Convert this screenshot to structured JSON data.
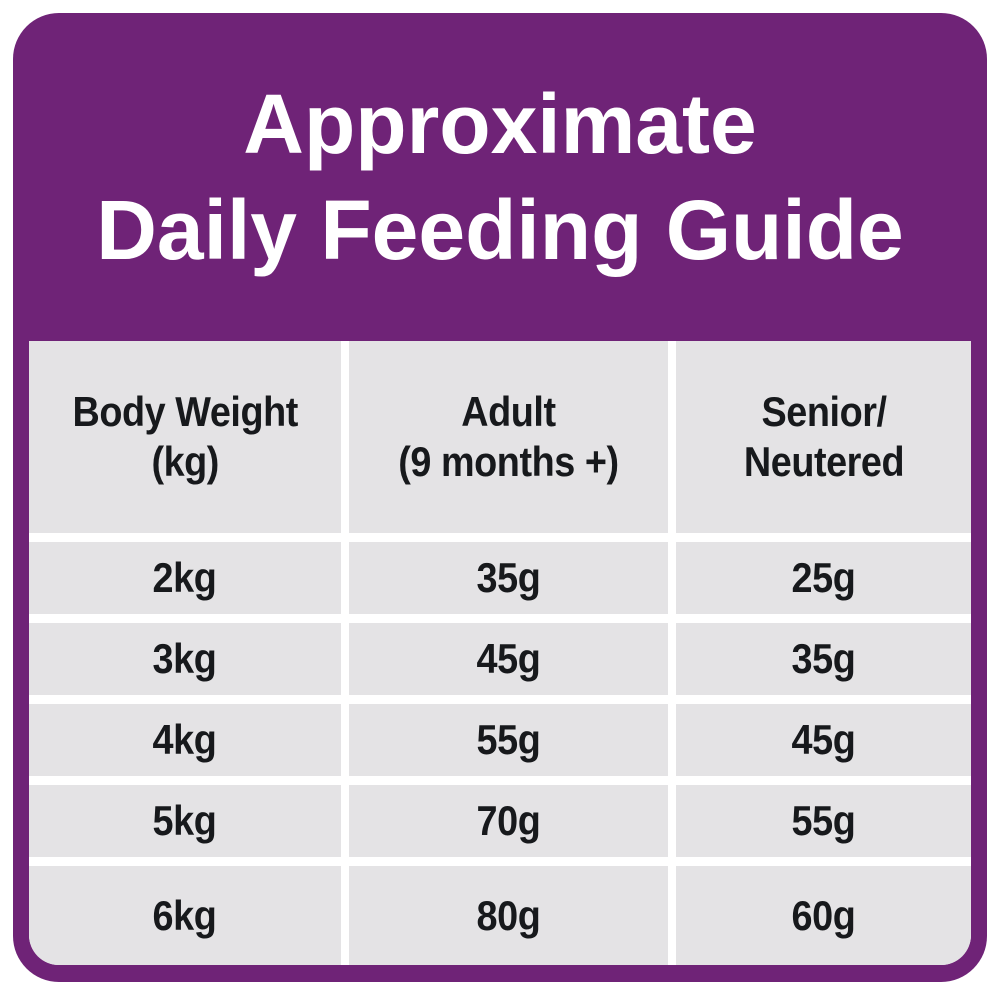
{
  "title": {
    "line1": "Approximate",
    "line2": "Daily Feeding Guide"
  },
  "table": {
    "columns": [
      {
        "line1": "Body Weight",
        "line2": "(kg)"
      },
      {
        "line1": "Adult",
        "line2": "(9 months +)"
      },
      {
        "line1": "Senior/",
        "line2": "Neutered"
      }
    ],
    "rows": [
      {
        "weight": "2kg",
        "adult": "35g",
        "senior": "25g"
      },
      {
        "weight": "3kg",
        "adult": "45g",
        "senior": "35g"
      },
      {
        "weight": "4kg",
        "adult": "55g",
        "senior": "45g"
      },
      {
        "weight": "5kg",
        "adult": "70g",
        "senior": "55g"
      },
      {
        "weight": "6kg",
        "adult": "80g",
        "senior": "60g"
      }
    ]
  },
  "colors": {
    "brand_purple": "#6F2377",
    "cell_gray": "#E4E3E5",
    "text_dark": "#17191C",
    "text_light": "#FFFFFF"
  }
}
